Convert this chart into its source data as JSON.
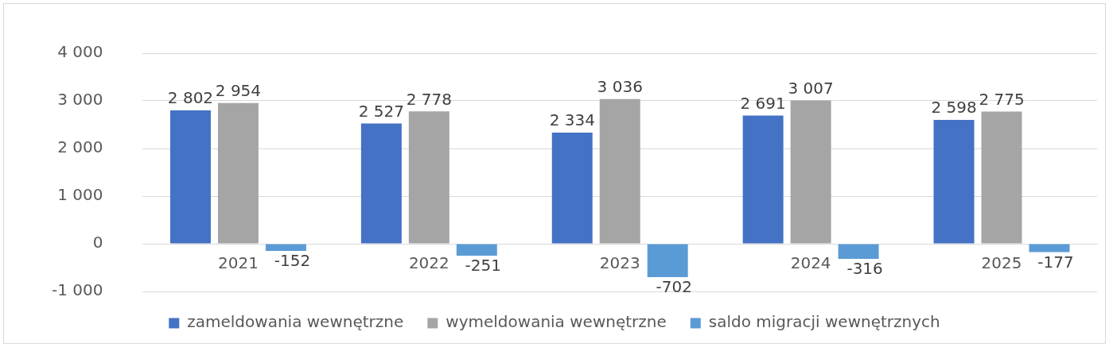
{
  "chart_data": {
    "type": "bar",
    "categories": [
      "2021",
      "2022",
      "2023",
      "2024",
      "2025"
    ],
    "series": [
      {
        "name": "zameldowania wewnętrzne",
        "color": "#4472c4",
        "values": [
          2802,
          2527,
          2334,
          2691,
          2598
        ]
      },
      {
        "name": "wymeldowania wewnętrzne",
        "color": "#a5a5a5",
        "values": [
          2954,
          2778,
          3036,
          3007,
          2775
        ]
      },
      {
        "name": "saldo migracji wewnętrznych",
        "color": "#5b9bd5",
        "values": [
          -152,
          -251,
          -702,
          -316,
          -177
        ]
      }
    ],
    "ylim": [
      -1000,
      4000
    ],
    "yticks": [
      {
        "value": -1000,
        "label": "-1 000"
      },
      {
        "value": 0,
        "label": "0"
      },
      {
        "value": 1000,
        "label": "1 000"
      },
      {
        "value": 2000,
        "label": "2 000"
      },
      {
        "value": 3000,
        "label": "3 000"
      },
      {
        "value": 4000,
        "label": "4 000"
      }
    ],
    "grid": "y",
    "legend": "bottom",
    "data_labels": true
  }
}
